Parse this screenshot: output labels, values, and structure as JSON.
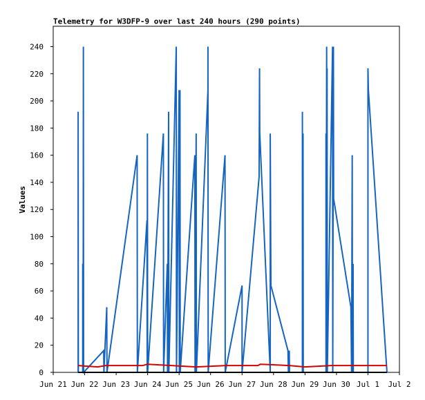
{
  "chart_data": {
    "type": "line",
    "title": "Telemetry for W3DFP-9 over last 240 hours (290 points)",
    "xlabel": "",
    "ylabel": "Values",
    "ylim": [
      0,
      255
    ],
    "yticks": [
      0,
      20,
      40,
      60,
      80,
      100,
      120,
      140,
      160,
      180,
      200,
      220,
      240
    ],
    "xlim": [
      "2024-06-21",
      "2024-07-02"
    ],
    "xticks": [
      {
        "x": "2024-06-21",
        "label": "Jun 21"
      },
      {
        "x": "2024-06-22",
        "label": "Jun 22"
      },
      {
        "x": "2024-06-23",
        "label": "Jun 23"
      },
      {
        "x": "2024-06-24",
        "label": "Jun 24"
      },
      {
        "x": "2024-06-25",
        "label": "Jun 25"
      },
      {
        "x": "2024-06-26",
        "label": "Jun 26"
      },
      {
        "x": "2024-06-27",
        "label": "Jun 27"
      },
      {
        "x": "2024-06-28",
        "label": "Jun 28"
      },
      {
        "x": "2024-06-29",
        "label": "Jun 29"
      },
      {
        "x": "2024-06-30",
        "label": "Jun 30"
      },
      {
        "x": "2024-07-01",
        "label": "Jul 1"
      },
      {
        "x": "2024-07-02",
        "label": "Jul 2"
      }
    ],
    "grid": false,
    "legend": "none",
    "series": [
      {
        "color": "#1565c0",
        "points": [
          [
            "2024-06-21 19:00",
            0
          ],
          [
            "2024-06-21 19:00",
            192
          ],
          [
            "2024-06-21 19:10",
            0
          ],
          [
            "2024-06-21 22:30",
            0
          ],
          [
            "2024-06-21 22:30",
            80
          ],
          [
            "2024-06-21 22:50",
            0
          ],
          [
            "2024-06-21 23:00",
            240
          ],
          [
            "2024-06-21 23:10",
            0
          ],
          [
            "2024-06-22 14:30",
            16
          ],
          [
            "2024-06-22 14:40",
            0
          ],
          [
            "2024-06-22 16:50",
            48
          ],
          [
            "2024-06-22 17:00",
            0
          ],
          [
            "2024-06-23 16:00",
            160
          ],
          [
            "2024-06-23 16:10",
            0
          ],
          [
            "2024-06-23 23:30",
            112
          ],
          [
            "2024-06-23 23:40",
            0
          ],
          [
            "2024-06-23 23:50",
            176
          ],
          [
            "2024-06-24 00:00",
            0
          ],
          [
            "2024-06-24 12:00",
            176
          ],
          [
            "2024-06-24 12:10",
            0
          ],
          [
            "2024-06-24 15:00",
            80
          ],
          [
            "2024-06-24 15:10",
            0
          ],
          [
            "2024-06-24 16:00",
            192
          ],
          [
            "2024-06-24 16:10",
            0
          ],
          [
            "2024-06-24 21:50",
            240
          ],
          [
            "2024-06-24 22:00",
            0
          ],
          [
            "2024-06-25 00:00",
            208
          ],
          [
            "2024-06-25 00:10",
            0
          ],
          [
            "2024-06-25 00:40",
            208
          ],
          [
            "2024-06-25 00:50",
            0
          ],
          [
            "2024-06-25 12:00",
            160
          ],
          [
            "2024-06-25 12:10",
            0
          ],
          [
            "2024-06-25 13:00",
            176
          ],
          [
            "2024-06-25 13:10",
            0
          ],
          [
            "2024-06-25 22:00",
            208
          ],
          [
            "2024-06-25 22:00",
            240
          ],
          [
            "2024-06-25 22:10",
            0
          ],
          [
            "2024-06-26 11:00",
            160
          ],
          [
            "2024-06-26 11:10",
            0
          ],
          [
            "2024-06-27 00:00",
            64
          ],
          [
            "2024-06-27 00:00",
            0
          ],
          [
            "2024-06-27 13:00",
            144
          ],
          [
            "2024-06-27 13:20",
            224
          ],
          [
            "2024-06-27 13:30",
            176
          ],
          [
            "2024-06-27 21:30",
            0
          ],
          [
            "2024-06-27 21:30",
            176
          ],
          [
            "2024-06-27 22:00",
            64
          ],
          [
            "2024-06-28 11:00",
            16
          ],
          [
            "2024-06-28 11:20",
            0
          ],
          [
            "2024-06-28 12:00",
            16
          ],
          [
            "2024-06-28 12:10",
            0
          ],
          [
            "2024-06-28 22:00",
            0
          ],
          [
            "2024-06-28 22:00",
            192
          ],
          [
            "2024-06-28 22:10",
            0
          ],
          [
            "2024-06-28 22:30",
            176
          ],
          [
            "2024-06-28 22:40",
            0
          ],
          [
            "2024-06-29 16:00",
            0
          ],
          [
            "2024-06-29 16:00",
            176
          ],
          [
            "2024-06-29 16:10",
            48
          ],
          [
            "2024-06-29 16:30",
            240
          ],
          [
            "2024-06-29 16:40",
            0
          ],
          [
            "2024-06-29 16:50",
            224
          ],
          [
            "2024-06-29 17:00",
            0
          ],
          [
            "2024-06-29 21:00",
            240
          ],
          [
            "2024-06-29 21:10",
            0
          ],
          [
            "2024-06-29 21:40",
            240
          ],
          [
            "2024-06-29 21:50",
            128
          ],
          [
            "2024-06-30 11:00",
            48
          ],
          [
            "2024-06-30 11:30",
            0
          ],
          [
            "2024-06-30 12:00",
            160
          ],
          [
            "2024-06-30 12:10",
            0
          ],
          [
            "2024-06-30 12:40",
            80
          ],
          [
            "2024-06-30 12:50",
            0
          ],
          [
            "2024-07-01 00:00",
            0
          ],
          [
            "2024-07-01 00:00",
            224
          ],
          [
            "2024-07-01 00:20",
            208
          ],
          [
            "2024-07-01 14:30",
            0
          ]
        ]
      },
      {
        "color": "#d50000",
        "points": [
          [
            "2024-06-21 19:00",
            5
          ],
          [
            "2024-06-22 10:00",
            4
          ],
          [
            "2024-06-22 16:00",
            5
          ],
          [
            "2024-06-23 20:00",
            5
          ],
          [
            "2024-06-24 00:00",
            6
          ],
          [
            "2024-06-25 13:00",
            4
          ],
          [
            "2024-06-26 12:00",
            5
          ],
          [
            "2024-06-27 12:00",
            5
          ],
          [
            "2024-06-27 14:00",
            6
          ],
          [
            "2024-06-28 12:00",
            5
          ],
          [
            "2024-06-29 00:00",
            4
          ],
          [
            "2024-06-29 20:00",
            5
          ],
          [
            "2024-07-01 14:30",
            5
          ]
        ]
      },
      {
        "color": "#000000",
        "points": [
          [
            "2024-06-21 19:00",
            0
          ],
          [
            "2024-07-01 14:30",
            0
          ]
        ]
      }
    ]
  }
}
